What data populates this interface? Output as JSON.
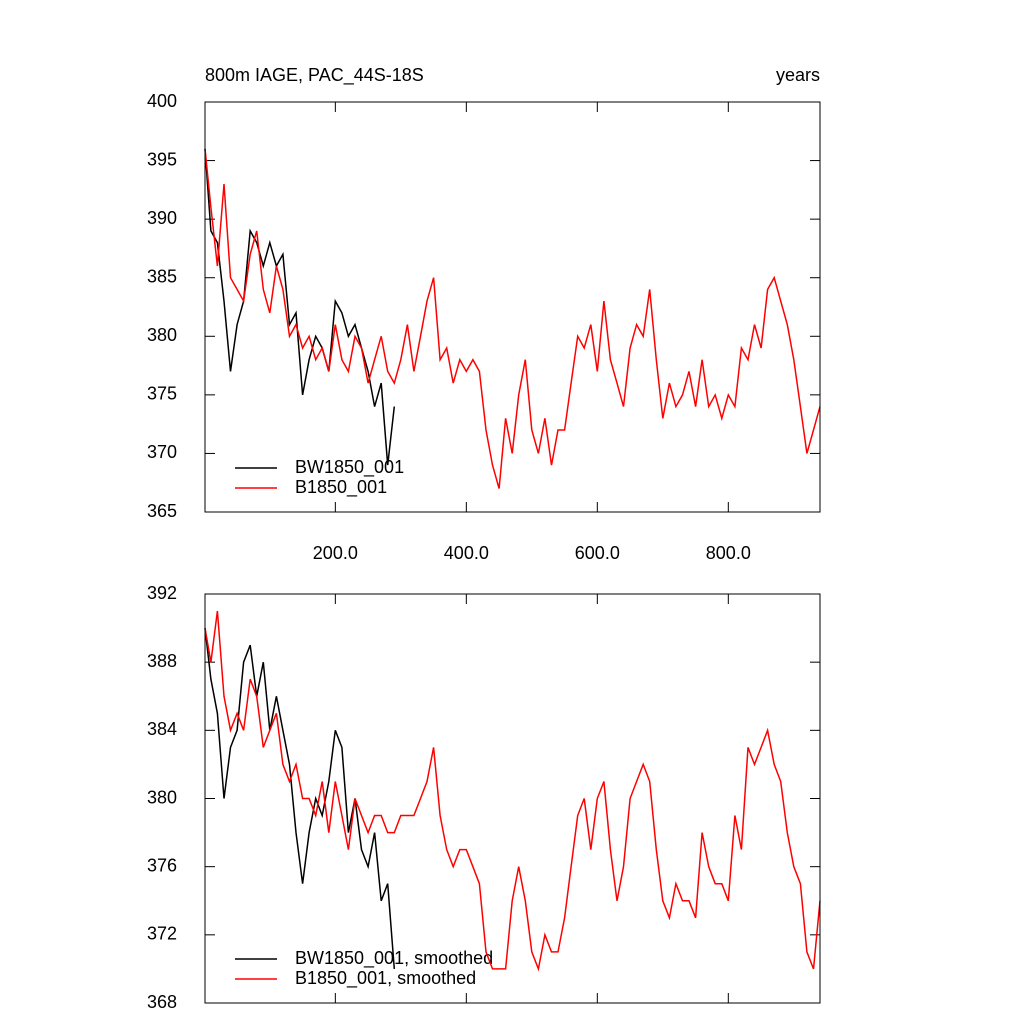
{
  "chart_data": [
    {
      "type": "line",
      "title": "800m IAGE, PAC_44S-18S",
      "right_title": "years",
      "xlim": [
        1,
        940
      ],
      "xticks": [
        {
          "value": 200,
          "label": "200.0"
        },
        {
          "value": 400,
          "label": "400.0"
        },
        {
          "value": 600,
          "label": "600.0"
        },
        {
          "value": 800,
          "label": "800.0"
        }
      ],
      "ylim": [
        365,
        400
      ],
      "yticks": [
        365,
        370,
        375,
        380,
        385,
        390,
        395,
        400
      ],
      "legend": "lower left",
      "series": [
        {
          "name": "BW1850_001",
          "color": "#000000",
          "x": [
            1,
            10,
            20,
            30,
            40,
            50,
            60,
            70,
            80,
            90,
            100,
            110,
            120,
            130,
            140,
            150,
            160,
            170,
            180,
            190,
            200,
            210,
            220,
            230,
            240,
            250,
            260,
            270,
            280,
            290
          ],
          "values": [
            396,
            389,
            388,
            383,
            377,
            381,
            383,
            389,
            388,
            386,
            388,
            386,
            387,
            381,
            382,
            375,
            378,
            380,
            379,
            377,
            383,
            382,
            380,
            381,
            379,
            377,
            374,
            376,
            369,
            374
          ]
        },
        {
          "name": "B1850_001",
          "color": "#ff0000",
          "x": [
            1,
            10,
            20,
            30,
            40,
            50,
            60,
            70,
            80,
            90,
            100,
            110,
            120,
            130,
            140,
            150,
            160,
            170,
            180,
            190,
            200,
            210,
            220,
            230,
            240,
            250,
            260,
            270,
            280,
            290,
            300,
            310,
            320,
            330,
            340,
            350,
            360,
            370,
            380,
            390,
            400,
            410,
            420,
            430,
            440,
            450,
            460,
            470,
            480,
            490,
            500,
            510,
            520,
            530,
            540,
            550,
            560,
            570,
            580,
            590,
            600,
            610,
            620,
            630,
            640,
            650,
            660,
            670,
            680,
            690,
            700,
            710,
            720,
            730,
            740,
            750,
            760,
            770,
            780,
            790,
            800,
            810,
            820,
            830,
            840,
            850,
            860,
            870,
            880,
            890,
            900,
            910,
            920,
            930,
            940
          ],
          "values": [
            396,
            391,
            386,
            393,
            385,
            384,
            383,
            387,
            389,
            384,
            382,
            386,
            384,
            380,
            381,
            379,
            380,
            378,
            379,
            377,
            381,
            378,
            377,
            380,
            379,
            376,
            378,
            380,
            377,
            376,
            378,
            381,
            377,
            380,
            383,
            385,
            378,
            379,
            376,
            378,
            377,
            378,
            377,
            372,
            369,
            367,
            373,
            370,
            375,
            378,
            372,
            370,
            373,
            369,
            372,
            372,
            376,
            380,
            379,
            381,
            377,
            383,
            378,
            376,
            374,
            379,
            381,
            380,
            384,
            378,
            373,
            376,
            374,
            375,
            377,
            374,
            378,
            374,
            375,
            373,
            375,
            374,
            379,
            378,
            381,
            379,
            384,
            385,
            383,
            381,
            378,
            374,
            370,
            372,
            374
          ]
        }
      ]
    },
    {
      "type": "line",
      "xlim": [
        1,
        940
      ],
      "xticks": [
        200,
        400,
        600,
        800
      ],
      "ylim": [
        368,
        392
      ],
      "yticks": [
        368,
        372,
        376,
        380,
        384,
        388,
        392
      ],
      "legend": "lower left",
      "series": [
        {
          "name": "BW1850_001, smoothed",
          "color": "#000000",
          "x": [
            1,
            10,
            20,
            30,
            40,
            50,
            60,
            70,
            80,
            90,
            100,
            110,
            120,
            130,
            140,
            150,
            160,
            170,
            180,
            190,
            200,
            210,
            220,
            230,
            240,
            250,
            260,
            270,
            280,
            290
          ],
          "values": [
            390,
            387,
            385,
            380,
            383,
            384,
            388,
            389,
            386,
            388,
            384,
            386,
            384,
            382,
            378,
            375,
            378,
            380,
            379,
            381,
            384,
            383,
            378,
            380,
            377,
            376,
            378,
            374,
            375,
            370
          ]
        },
        {
          "name": "B1850_001, smoothed",
          "color": "#ff0000",
          "x": [
            1,
            10,
            20,
            30,
            40,
            50,
            60,
            70,
            80,
            90,
            100,
            110,
            120,
            130,
            140,
            150,
            160,
            170,
            180,
            190,
            200,
            210,
            220,
            230,
            240,
            250,
            260,
            270,
            280,
            290,
            300,
            310,
            320,
            330,
            340,
            350,
            360,
            370,
            380,
            390,
            400,
            410,
            420,
            430,
            440,
            450,
            460,
            470,
            480,
            490,
            500,
            510,
            520,
            530,
            540,
            550,
            560,
            570,
            580,
            590,
            600,
            610,
            620,
            630,
            640,
            650,
            660,
            670,
            680,
            690,
            700,
            710,
            720,
            730,
            740,
            750,
            760,
            770,
            780,
            790,
            800,
            810,
            820,
            830,
            840,
            850,
            860,
            870,
            880,
            890,
            900,
            910,
            920,
            930,
            940
          ],
          "values": [
            390,
            388,
            391,
            386,
            384,
            385,
            384,
            387,
            386,
            383,
            384,
            385,
            382,
            381,
            382,
            380,
            380,
            379,
            381,
            378,
            381,
            379,
            377,
            380,
            379,
            378,
            379,
            379,
            378,
            378,
            379,
            379,
            379,
            380,
            381,
            383,
            379,
            377,
            376,
            377,
            377,
            376,
            375,
            371,
            370,
            370,
            370,
            374,
            376,
            374,
            371,
            370,
            372,
            371,
            371,
            373,
            376,
            379,
            380,
            377,
            380,
            381,
            377,
            374,
            376,
            380,
            381,
            382,
            381,
            377,
            374,
            373,
            375,
            374,
            374,
            373,
            378,
            376,
            375,
            375,
            374,
            379,
            377,
            383,
            382,
            383,
            384,
            382,
            381,
            378,
            376,
            375,
            371,
            370,
            374
          ]
        }
      ]
    }
  ]
}
